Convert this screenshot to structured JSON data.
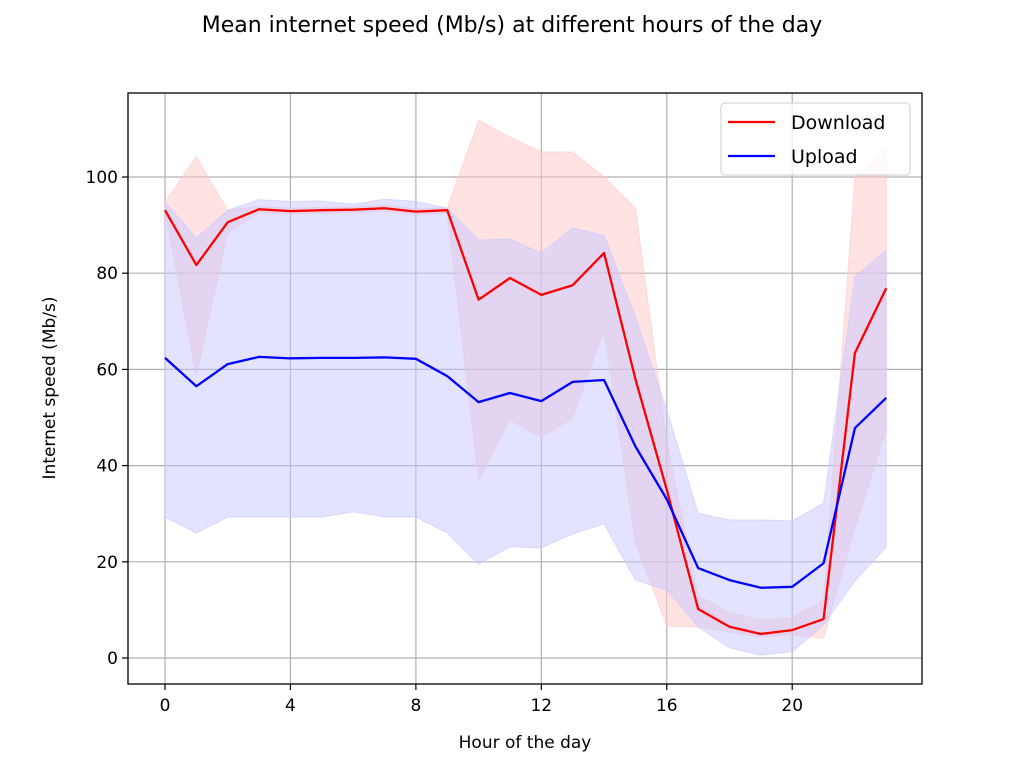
{
  "chart_data": {
    "type": "line",
    "title": "Mean internet speed (Mb/s) at different hours of the day",
    "xlabel": "Hour of the day",
    "ylabel": "Internet speed (Mb/s)",
    "xlim": [
      -1.2,
      24.1
    ],
    "ylim": [
      -5.5,
      117.5
    ],
    "xticks": [
      0,
      4,
      8,
      12,
      16,
      20
    ],
    "yticks": [
      0,
      20,
      40,
      60,
      80,
      100
    ],
    "grid": true,
    "legend_position": "upper right",
    "x": [
      0,
      1,
      2,
      3,
      4,
      5,
      6,
      7,
      8,
      9,
      10,
      11,
      12,
      13,
      14,
      15,
      16,
      17,
      18,
      19,
      20,
      21,
      22,
      23
    ],
    "series": [
      {
        "name": "Download",
        "color": "#ff0000",
        "band_color": "#ffc8c8",
        "values": [
          93.1,
          81.7,
          90.6,
          93.3,
          92.9,
          93.1,
          93.2,
          93.5,
          92.8,
          93.1,
          74.5,
          79.0,
          75.5,
          77.5,
          84.2,
          58.0,
          35.0,
          10.2,
          6.5,
          5.0,
          5.8,
          8.1,
          63.4,
          76.9
        ],
        "upper": [
          94.8,
          104.2,
          93.1,
          93.9,
          93.5,
          93.7,
          93.8,
          94.1,
          93.4,
          93.6,
          111.8,
          108.3,
          105.2,
          105.2,
          100.0,
          93.6,
          45.0,
          13.0,
          9.4,
          7.9,
          8.3,
          12.1,
          100.0,
          105.8
        ],
        "lower": [
          92.7,
          58.8,
          88.3,
          92.7,
          92.3,
          92.5,
          92.6,
          92.9,
          92.2,
          92.5,
          37.0,
          49.5,
          45.9,
          49.9,
          68.2,
          24.0,
          6.6,
          6.5,
          5.4,
          4.4,
          4.8,
          4.1,
          27.0,
          47.4
        ]
      },
      {
        "name": "Upload",
        "color": "#0000ff",
        "band_color": "#c8c8ff",
        "values": [
          62.4,
          56.5,
          61.1,
          62.6,
          62.3,
          62.4,
          62.4,
          62.5,
          62.2,
          58.6,
          53.2,
          55.1,
          53.4,
          57.4,
          57.8,
          44.0,
          33.0,
          18.7,
          16.2,
          14.6,
          14.8,
          19.7,
          47.8,
          54.1
        ],
        "upper": [
          94.8,
          87.3,
          93.1,
          95.3,
          94.9,
          95.0,
          94.3,
          95.4,
          94.9,
          93.5,
          86.9,
          87.1,
          84.2,
          89.4,
          87.9,
          71.0,
          51.6,
          30.1,
          28.7,
          28.7,
          28.5,
          32.2,
          79.2,
          84.8
        ],
        "lower": [
          29.3,
          26.0,
          29.3,
          29.3,
          29.3,
          29.3,
          30.4,
          29.3,
          29.3,
          26.0,
          19.5,
          23.1,
          22.9,
          25.8,
          27.9,
          16.2,
          14.1,
          6.5,
          2.1,
          0.6,
          1.3,
          6.9,
          16.0,
          23.1
        ]
      }
    ]
  },
  "legend": {
    "items": [
      {
        "label": "Download",
        "color": "#ff0000"
      },
      {
        "label": "Upload",
        "color": "#0000ff"
      }
    ]
  }
}
